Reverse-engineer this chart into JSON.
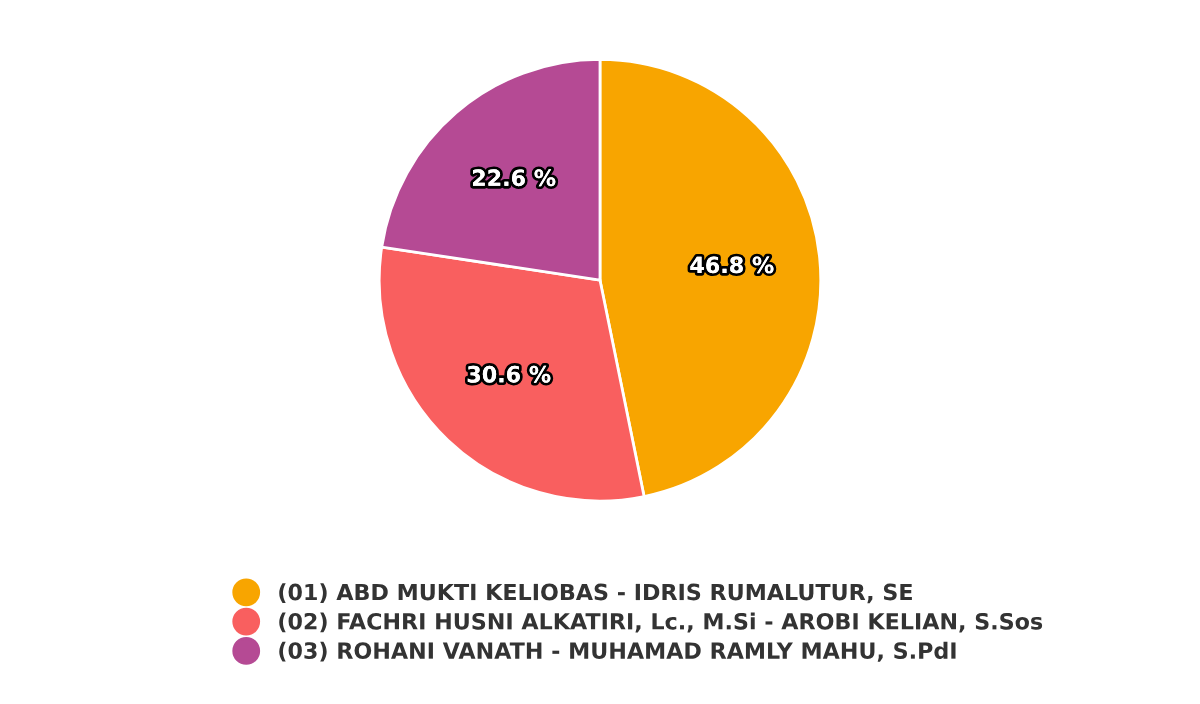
{
  "chart_data": {
    "type": "pie",
    "categories": [
      "(01) ABD MUKTI KELIOBAS - IDRIS RUMALUTUR, SE",
      "(02) FACHRI HUSNI ALKATIRI, Lc., M.Si - AROBI KELIAN, S.Sos",
      "(03) ROHANI VANATH - MUHAMAD RAMLY MAHU, S.PdI"
    ],
    "values": [
      46.8,
      30.6,
      22.6
    ],
    "value_labels": [
      "46.8 %",
      "30.6 %",
      "22.6 %"
    ],
    "colors": [
      "#f8a500",
      "#f95f5f",
      "#b54a94"
    ],
    "legend": "bottom"
  }
}
